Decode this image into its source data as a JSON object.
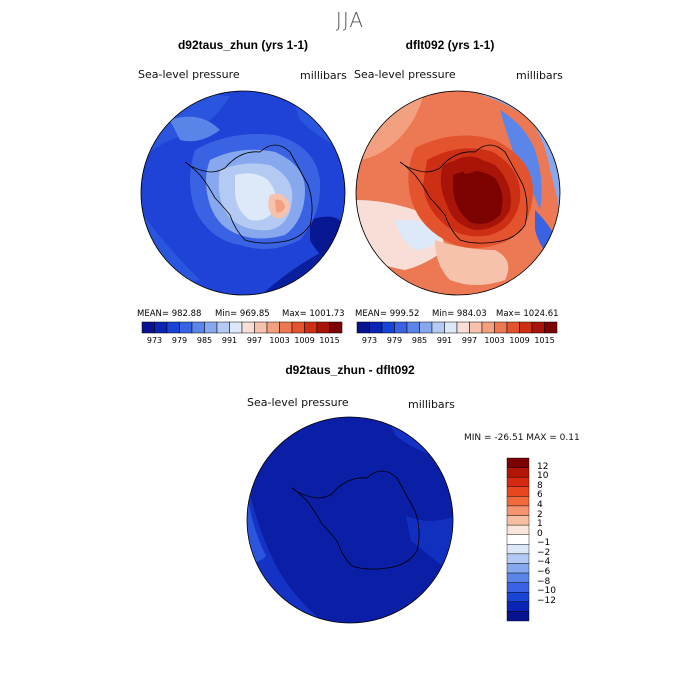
{
  "season": "JJA",
  "colors": {
    "blue_scale": [
      "#08138f",
      "#0a24b4",
      "#1744d4",
      "#3a63e3",
      "#5b85e8",
      "#87a8ee",
      "#b4caf3",
      "#dde8f8"
    ],
    "red_scale": [
      "#f8ded6",
      "#f6c2ab",
      "#f2a07f",
      "#ec7854",
      "#e3532e",
      "#cd2f14",
      "#a81508",
      "#7d0303"
    ],
    "ocean_blue": "#1a3bd0",
    "ocean_red": "#e88968",
    "diff_fill": "#0a1ea6",
    "coast": "#000000"
  },
  "panels": {
    "left": {
      "title": "d92taus_zhun (yrs 1-1)",
      "field": "Sea-level pressure",
      "units": "millibars",
      "mean": "MEAN= 982.88",
      "min": "Min= 969.85",
      "max": "Max= 1001.73"
    },
    "right": {
      "title": "dflt092 (yrs 1-1)",
      "field": "Sea-level pressure",
      "units": "millibars",
      "mean": "MEAN= 999.52",
      "min": "Min= 984.03",
      "max": "Max= 1024.61"
    },
    "diff": {
      "title": "d92taus_zhun - dflt092",
      "field": "Sea-level pressure",
      "units": "millibars",
      "minmax": "MIN = -26.51 MAX =    0.11"
    }
  },
  "colorbar": {
    "ticks": [
      "973",
      "979",
      "985",
      "991",
      "997",
      "1003",
      "1009",
      "1015"
    ],
    "colors": [
      "#08138f",
      "#0a24b4",
      "#1744d4",
      "#3a63e3",
      "#5b85e8",
      "#87a8ee",
      "#b4caf3",
      "#dde8f8",
      "#f8ded6",
      "#f6c2ab",
      "#f2a07f",
      "#ec7854",
      "#e3532e",
      "#cd2f14",
      "#a81508",
      "#7d0303"
    ]
  },
  "diff_colorbar": {
    "ticks": [
      "12",
      "10",
      "8",
      "6",
      "4",
      "2",
      "1",
      "0",
      "−1",
      "−2",
      "−4",
      "−6",
      "−8",
      "−10",
      "−12"
    ],
    "colors": [
      "#7d0303",
      "#b21405",
      "#d52a10",
      "#e8461f",
      "#f06a3e",
      "#f49470",
      "#f7bfa2",
      "#fae5da",
      "#ffffff",
      "#dce7f8",
      "#b3c8f3",
      "#87a7ee",
      "#5b84e8",
      "#3a62e2",
      "#1a44d4",
      "#0a25b5",
      "#06128f"
    ]
  }
}
